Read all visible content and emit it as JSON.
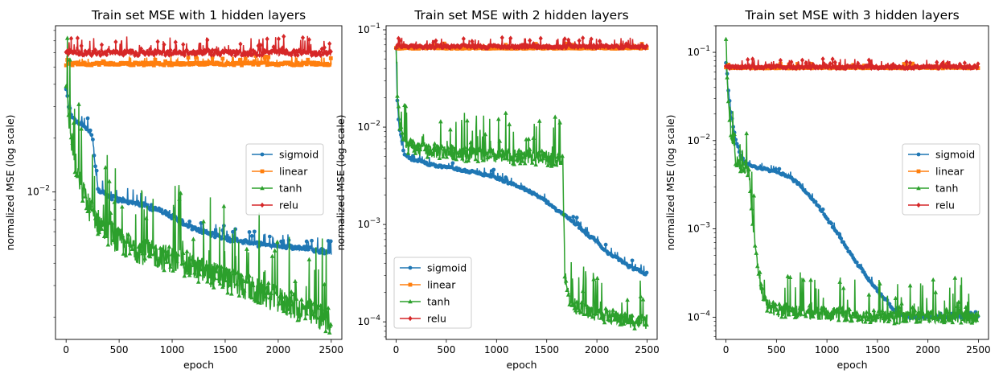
{
  "chart_data": [
    {
      "type": "line",
      "title": "Train set MSE with 1 hidden layers",
      "xlabel": "epoch",
      "ylabel": "normalized MSE (log scale)",
      "yscale": "log",
      "xlim": [
        -100,
        2600
      ],
      "ylim": [
        0.0015,
        0.085
      ],
      "xticks": [
        0,
        500,
        1000,
        1500,
        2000,
        2500
      ],
      "yticks": [
        {
          "value": 0.01,
          "label": "10^-2"
        }
      ],
      "legend": "center-right",
      "grid": false,
      "series": [
        {
          "name": "sigmoid",
          "color": "#1f77b4",
          "marker": "circle",
          "x": [
            0,
            20,
            50,
            100,
            150,
            200,
            250,
            280,
            300,
            350,
            400,
            500,
            700,
            900,
            1000,
            1200,
            1500,
            1800,
            2100,
            2300,
            2500
          ],
          "y": [
            0.038,
            0.031,
            0.027,
            0.025,
            0.024,
            0.022,
            0.02,
            0.013,
            0.0105,
            0.0098,
            0.0095,
            0.009,
            0.0085,
            0.0078,
            0.0073,
            0.0063,
            0.0055,
            0.0051,
            0.0049,
            0.0048,
            0.0046
          ]
        },
        {
          "name": "linear",
          "color": "#ff7f0e",
          "marker": "square",
          "x": [
            0,
            500,
            1000,
            1500,
            2000,
            2500
          ],
          "y": [
            0.052,
            0.052,
            0.052,
            0.052,
            0.052,
            0.052
          ]
        },
        {
          "name": "tanh",
          "color": "#2ca02c",
          "marker": "triangle",
          "x": [
            0,
            10,
            30,
            60,
            100,
            200,
            300,
            400,
            500,
            700,
            1000,
            1300,
            1600,
            2000,
            2300,
            2500
          ],
          "y": [
            0.045,
            0.03,
            0.025,
            0.018,
            0.013,
            0.0085,
            0.0068,
            0.006,
            0.0052,
            0.0047,
            0.0042,
            0.0036,
            0.0031,
            0.0025,
            0.0021,
            0.0019
          ]
        },
        {
          "name": "relu",
          "color": "#d62728",
          "marker": "diamond",
          "x": [
            0,
            500,
            1000,
            1500,
            2000,
            2500
          ],
          "y": [
            0.06,
            0.06,
            0.06,
            0.06,
            0.06,
            0.06
          ]
        }
      ]
    },
    {
      "type": "line",
      "title": "Train set MSE with 2 hidden layers",
      "xlabel": "epoch",
      "ylabel": "normalized MSE (log scale)",
      "yscale": "log",
      "xlim": [
        -100,
        2600
      ],
      "ylim": [
        6.6e-05,
        0.11
      ],
      "xticks": [
        0,
        500,
        1000,
        1500,
        2000,
        2500
      ],
      "yticks": [
        {
          "value": 0.0001,
          "label": "10^-4"
        },
        {
          "value": 0.001,
          "label": "10^-3"
        },
        {
          "value": 0.01,
          "label": "10^-2"
        },
        {
          "value": 0.1,
          "label": "10^-1"
        }
      ],
      "legend": "lower-left",
      "grid": false,
      "series": [
        {
          "name": "sigmoid",
          "color": "#1f77b4",
          "marker": "circle",
          "x": [
            0,
            10,
            30,
            60,
            100,
            200,
            400,
            600,
            800,
            1000,
            1200,
            1400,
            1500,
            1600,
            1700,
            1800,
            1900,
            2000,
            2100,
            2200,
            2300,
            2400,
            2500
          ],
          "y": [
            0.065,
            0.02,
            0.01,
            0.006,
            0.005,
            0.0045,
            0.004,
            0.0037,
            0.0034,
            0.003,
            0.0025,
            0.002,
            0.0017,
            0.0014,
            0.0012,
            0.001,
            0.0008,
            0.00065,
            0.00052,
            0.00045,
            0.00038,
            0.00034,
            0.00031
          ]
        },
        {
          "name": "linear",
          "color": "#ff7f0e",
          "marker": "square",
          "x": [
            0,
            500,
            1000,
            1500,
            2000,
            2500
          ],
          "y": [
            0.065,
            0.065,
            0.065,
            0.065,
            0.065,
            0.065
          ]
        },
        {
          "name": "tanh",
          "color": "#2ca02c",
          "marker": "triangle",
          "x": [
            0,
            10,
            30,
            60,
            100,
            200,
            500,
            1000,
            1500,
            1660,
            1680,
            1720,
            1800,
            2000,
            2200,
            2400,
            2500
          ],
          "y": [
            0.06,
            0.025,
            0.012,
            0.008,
            0.0065,
            0.006,
            0.0055,
            0.005,
            0.0048,
            0.0045,
            0.0003,
            0.00018,
            0.00014,
            0.00012,
            0.00011,
            0.0001,
            0.0001
          ]
        },
        {
          "name": "relu",
          "color": "#d62728",
          "marker": "diamond",
          "x": [
            0,
            500,
            1000,
            1500,
            2000,
            2500
          ],
          "y": [
            0.067,
            0.067,
            0.067,
            0.067,
            0.067,
            0.067
          ]
        }
      ]
    },
    {
      "type": "line",
      "title": "Train set MSE with 3 hidden layers",
      "xlabel": "epoch",
      "ylabel": "normalized MSE (log scale)",
      "yscale": "log",
      "xlim": [
        -100,
        2600
      ],
      "ylim": [
        5.6e-05,
        0.2
      ],
      "xticks": [
        0,
        500,
        1000,
        1500,
        2000,
        2500
      ],
      "yticks": [
        {
          "value": 0.0001,
          "label": "10^-4"
        },
        {
          "value": 0.001,
          "label": "10^-3"
        },
        {
          "value": 0.01,
          "label": "10^-2"
        },
        {
          "value": 0.1,
          "label": "10^-1"
        }
      ],
      "legend": "center-right",
      "grid": false,
      "series": [
        {
          "name": "sigmoid",
          "color": "#1f77b4",
          "marker": "circle",
          "x": [
            0,
            20,
            50,
            100,
            150,
            200,
            300,
            400,
            500,
            600,
            700,
            800,
            900,
            1000,
            1100,
            1200,
            1300,
            1400,
            1500,
            1600,
            1650,
            1700,
            1800,
            2000,
            2500
          ],
          "y": [
            0.07,
            0.04,
            0.02,
            0.01,
            0.0065,
            0.0055,
            0.005,
            0.0047,
            0.0044,
            0.004,
            0.0034,
            0.0026,
            0.0019,
            0.0013,
            0.0009,
            0.0006,
            0.0004,
            0.00028,
            0.0002,
            0.00015,
            0.00012,
            0.00011,
            0.0001,
            0.0001,
            0.0001
          ]
        },
        {
          "name": "linear",
          "color": "#ff7f0e",
          "marker": "square",
          "x": [
            0,
            500,
            1000,
            1500,
            2000,
            2500
          ],
          "y": [
            0.067,
            0.067,
            0.067,
            0.067,
            0.067,
            0.067
          ]
        },
        {
          "name": "tanh",
          "color": "#2ca02c",
          "marker": "triangle",
          "x": [
            0,
            10,
            30,
            60,
            100,
            150,
            200,
            230,
            260,
            300,
            350,
            400,
            500,
            1000,
            1500,
            2000,
            2500
          ],
          "y": [
            0.13,
            0.06,
            0.02,
            0.01,
            0.006,
            0.005,
            0.005,
            0.0045,
            0.0015,
            0.0005,
            0.0002,
            0.00014,
            0.00012,
            0.00011,
            0.0001,
            0.0001,
            0.0001
          ]
        },
        {
          "name": "relu",
          "color": "#d62728",
          "marker": "diamond",
          "x": [
            0,
            500,
            1000,
            1500,
            2000,
            2500
          ],
          "y": [
            0.068,
            0.068,
            0.068,
            0.068,
            0.068,
            0.068
          ]
        }
      ]
    }
  ]
}
